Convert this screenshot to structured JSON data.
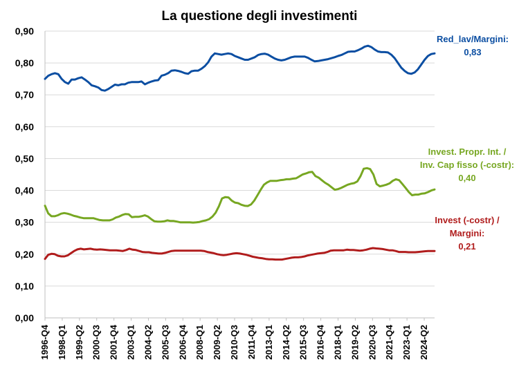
{
  "chart_data": {
    "type": "line",
    "title": "La questione degli investimenti",
    "xlabel": "",
    "ylabel": "",
    "ylim": [
      0,
      0.9
    ],
    "y_ticks": [
      "0,00",
      "0,10",
      "0,20",
      "0,30",
      "0,40",
      "0,50",
      "0,60",
      "0,70",
      "0,80",
      "0,90"
    ],
    "grid": true,
    "legend": "annotations at right end of each series",
    "x_ticks": [
      "1996-Q4",
      "1998-Q1",
      "1999-Q2",
      "2000-Q3",
      "2001-Q4",
      "2003-Q1",
      "2004-Q2",
      "2005-Q3",
      "2006-Q4",
      "2008-Q1",
      "2009-Q2",
      "2010-Q3",
      "2011-Q4",
      "2013-Q1",
      "2014-Q2",
      "2015-Q3",
      "2016-Q4",
      "2018-Q1",
      "2019-Q2",
      "2020-Q3",
      "2021-Q4",
      "2023-Q1",
      "2024-Q2"
    ],
    "x_start": "1996-Q4",
    "x_end": "2025-Q1",
    "series": [
      {
        "name": "Red_lav/Margini",
        "color": "#0b4ea2",
        "label_lines": [
          "Red_lav/Margini:",
          "0,83"
        ],
        "last_value": 0.83,
        "values": [
          0.75,
          0.76,
          0.765,
          0.768,
          0.765,
          0.75,
          0.74,
          0.735,
          0.748,
          0.748,
          0.752,
          0.755,
          0.748,
          0.74,
          0.73,
          0.727,
          0.723,
          0.715,
          0.713,
          0.718,
          0.725,
          0.732,
          0.73,
          0.733,
          0.733,
          0.738,
          0.74,
          0.74,
          0.74,
          0.742,
          0.733,
          0.738,
          0.742,
          0.745,
          0.746,
          0.76,
          0.763,
          0.768,
          0.776,
          0.777,
          0.775,
          0.772,
          0.768,
          0.766,
          0.774,
          0.776,
          0.776,
          0.782,
          0.79,
          0.802,
          0.82,
          0.83,
          0.828,
          0.826,
          0.828,
          0.83,
          0.828,
          0.822,
          0.818,
          0.814,
          0.81,
          0.81,
          0.814,
          0.818,
          0.825,
          0.828,
          0.829,
          0.826,
          0.82,
          0.814,
          0.81,
          0.808,
          0.81,
          0.814,
          0.818,
          0.82,
          0.82,
          0.82,
          0.82,
          0.816,
          0.81,
          0.805,
          0.806,
          0.808,
          0.81,
          0.812,
          0.815,
          0.818,
          0.822,
          0.825,
          0.83,
          0.835,
          0.836,
          0.836,
          0.84,
          0.845,
          0.851,
          0.854,
          0.85,
          0.842,
          0.836,
          0.834,
          0.834,
          0.833,
          0.826,
          0.815,
          0.8,
          0.785,
          0.775,
          0.768,
          0.766,
          0.77,
          0.78,
          0.795,
          0.81,
          0.822,
          0.828,
          0.83
        ]
      },
      {
        "name": "Invest. Propr. Int. / Inv. Cap fisso (-costr)",
        "color": "#77a722",
        "label_lines": [
          "Invest. Propr. Int. /",
          "Inv. Cap fisso (-costr):",
          "0,40"
        ],
        "last_value": 0.4,
        "values": [
          0.352,
          0.328,
          0.319,
          0.319,
          0.322,
          0.327,
          0.329,
          0.327,
          0.324,
          0.32,
          0.318,
          0.315,
          0.313,
          0.313,
          0.313,
          0.313,
          0.31,
          0.307,
          0.306,
          0.306,
          0.306,
          0.309,
          0.315,
          0.318,
          0.323,
          0.326,
          0.325,
          0.316,
          0.317,
          0.317,
          0.319,
          0.322,
          0.318,
          0.31,
          0.303,
          0.302,
          0.302,
          0.303,
          0.306,
          0.304,
          0.304,
          0.302,
          0.3,
          0.3,
          0.3,
          0.3,
          0.299,
          0.3,
          0.301,
          0.304,
          0.306,
          0.31,
          0.318,
          0.33,
          0.35,
          0.375,
          0.379,
          0.378,
          0.368,
          0.362,
          0.36,
          0.355,
          0.352,
          0.351,
          0.356,
          0.368,
          0.385,
          0.402,
          0.418,
          0.425,
          0.43,
          0.43,
          0.43,
          0.432,
          0.433,
          0.435,
          0.435,
          0.437,
          0.438,
          0.444,
          0.45,
          0.453,
          0.457,
          0.458,
          0.445,
          0.44,
          0.432,
          0.424,
          0.418,
          0.41,
          0.402,
          0.404,
          0.408,
          0.413,
          0.418,
          0.421,
          0.423,
          0.428,
          0.445,
          0.468,
          0.47,
          0.467,
          0.45,
          0.42,
          0.413,
          0.415,
          0.418,
          0.422,
          0.43,
          0.435,
          0.432,
          0.42,
          0.408,
          0.395,
          0.385,
          0.387,
          0.387,
          0.39,
          0.391,
          0.395,
          0.4,
          0.403
        ]
      },
      {
        "name": "Invest (-costr) / Margini",
        "color": "#b01c1c",
        "label_lines": [
          "Invest (-costr) /",
          "Margini:",
          "0,21"
        ],
        "last_value": 0.21,
        "values": [
          0.185,
          0.198,
          0.201,
          0.2,
          0.195,
          0.193,
          0.193,
          0.196,
          0.203,
          0.21,
          0.215,
          0.217,
          0.215,
          0.216,
          0.217,
          0.215,
          0.214,
          0.215,
          0.214,
          0.213,
          0.212,
          0.212,
          0.212,
          0.211,
          0.21,
          0.213,
          0.217,
          0.214,
          0.213,
          0.21,
          0.207,
          0.206,
          0.206,
          0.204,
          0.203,
          0.202,
          0.202,
          0.204,
          0.207,
          0.21,
          0.211,
          0.211,
          0.211,
          0.211,
          0.211,
          0.211,
          0.211,
          0.211,
          0.211,
          0.21,
          0.207,
          0.205,
          0.203,
          0.2,
          0.198,
          0.197,
          0.198,
          0.2,
          0.202,
          0.203,
          0.202,
          0.2,
          0.198,
          0.195,
          0.192,
          0.19,
          0.188,
          0.187,
          0.185,
          0.184,
          0.184,
          0.183,
          0.183,
          0.183,
          0.185,
          0.187,
          0.189,
          0.19,
          0.19,
          0.191,
          0.193,
          0.196,
          0.198,
          0.2,
          0.202,
          0.203,
          0.204,
          0.207,
          0.211,
          0.212,
          0.212,
          0.212,
          0.212,
          0.214,
          0.213,
          0.213,
          0.212,
          0.211,
          0.212,
          0.214,
          0.217,
          0.219,
          0.218,
          0.217,
          0.216,
          0.214,
          0.212,
          0.212,
          0.21,
          0.207,
          0.207,
          0.207,
          0.206,
          0.206,
          0.206,
          0.207,
          0.208,
          0.209,
          0.21,
          0.21,
          0.21
        ]
      }
    ]
  }
}
